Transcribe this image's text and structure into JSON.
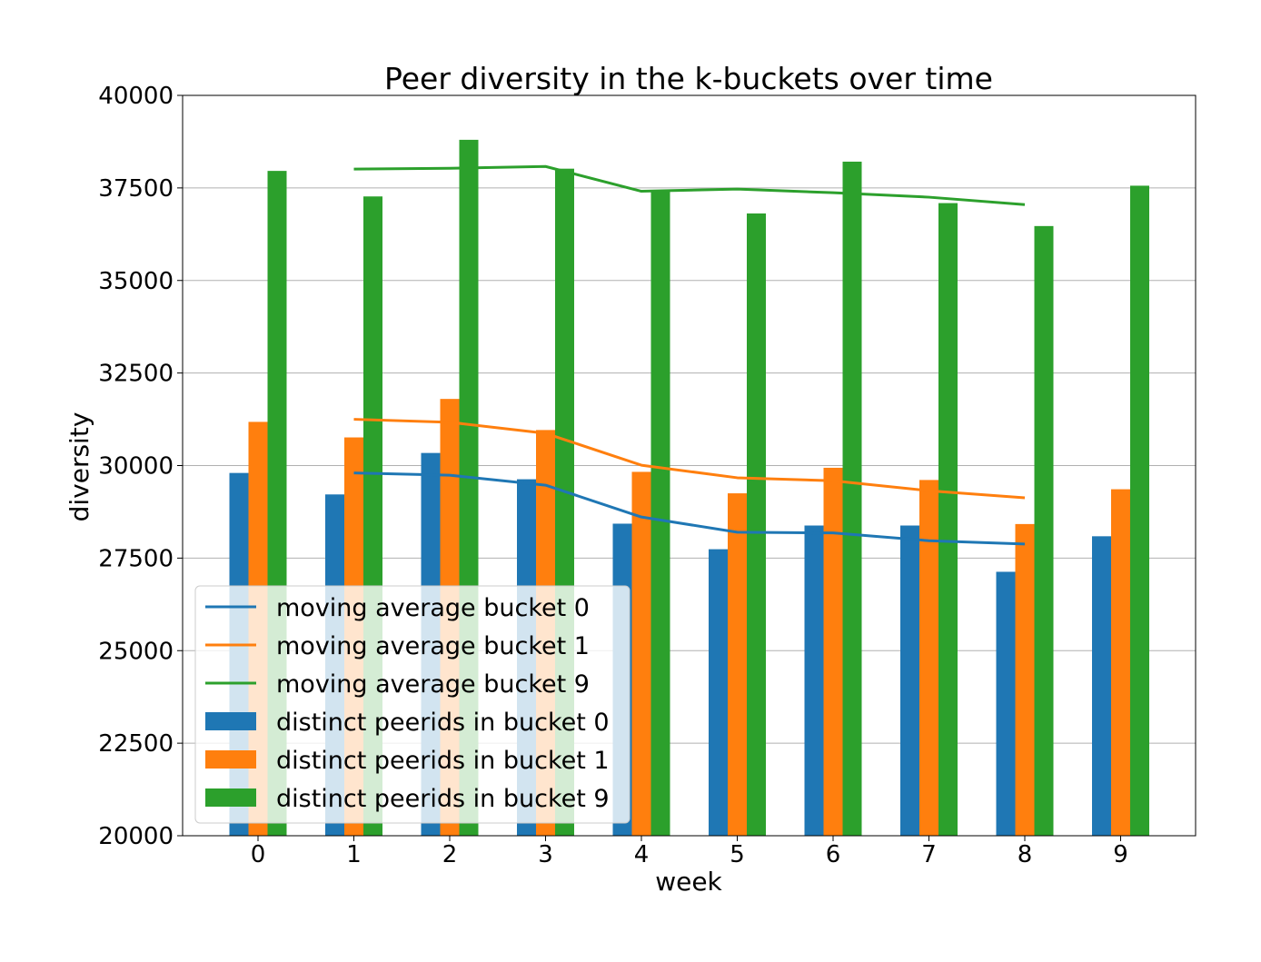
{
  "chart_data": {
    "type": "bar",
    "title": "Peer diversity in the k-buckets over time",
    "xlabel": "week",
    "ylabel": "diversity",
    "categories": [
      "0",
      "1",
      "2",
      "3",
      "4",
      "5",
      "6",
      "7",
      "8",
      "9"
    ],
    "ylim": [
      20000,
      40000
    ],
    "yticks": [
      20000,
      22500,
      25000,
      27500,
      30000,
      32500,
      35000,
      37500,
      40000
    ],
    "grid": "horizontal",
    "legend_position": "lower-left",
    "bar_series": [
      {
        "name": "distinct peerids in bucket 0",
        "color": "#1f77b4",
        "values": [
          29800,
          29220,
          30340,
          29630,
          28430,
          27740,
          28380,
          28380,
          27130,
          28090
        ]
      },
      {
        "name": "distinct peerids in bucket 1",
        "color": "#ff7f0e",
        "values": [
          31180,
          30760,
          31800,
          30960,
          29830,
          29250,
          29940,
          29610,
          28420,
          29360
        ]
      },
      {
        "name": "distinct peerids in bucket 9",
        "color": "#2ca02c",
        "values": [
          37960,
          37270,
          38800,
          38020,
          37420,
          36810,
          38210,
          37090,
          36470,
          37560
        ]
      }
    ],
    "line_series": [
      {
        "name": "moving average bucket 0",
        "color": "#1f77b4",
        "x": [
          1,
          2,
          3,
          4,
          5,
          6,
          7,
          8
        ],
        "values": [
          29800,
          29740,
          29470,
          28610,
          28200,
          28180,
          27970,
          27880
        ]
      },
      {
        "name": "moving average bucket 1",
        "color": "#ff7f0e",
        "x": [
          1,
          2,
          3,
          4,
          5,
          6,
          7,
          8
        ],
        "values": [
          31250,
          31170,
          30870,
          30010,
          29670,
          29590,
          29320,
          29130
        ]
      },
      {
        "name": "moving average bucket 9",
        "color": "#2ca02c",
        "x": [
          1,
          2,
          3,
          4,
          5,
          6,
          7,
          8
        ],
        "values": [
          38010,
          38030,
          38080,
          37410,
          37470,
          37370,
          37250,
          37050
        ]
      }
    ]
  }
}
